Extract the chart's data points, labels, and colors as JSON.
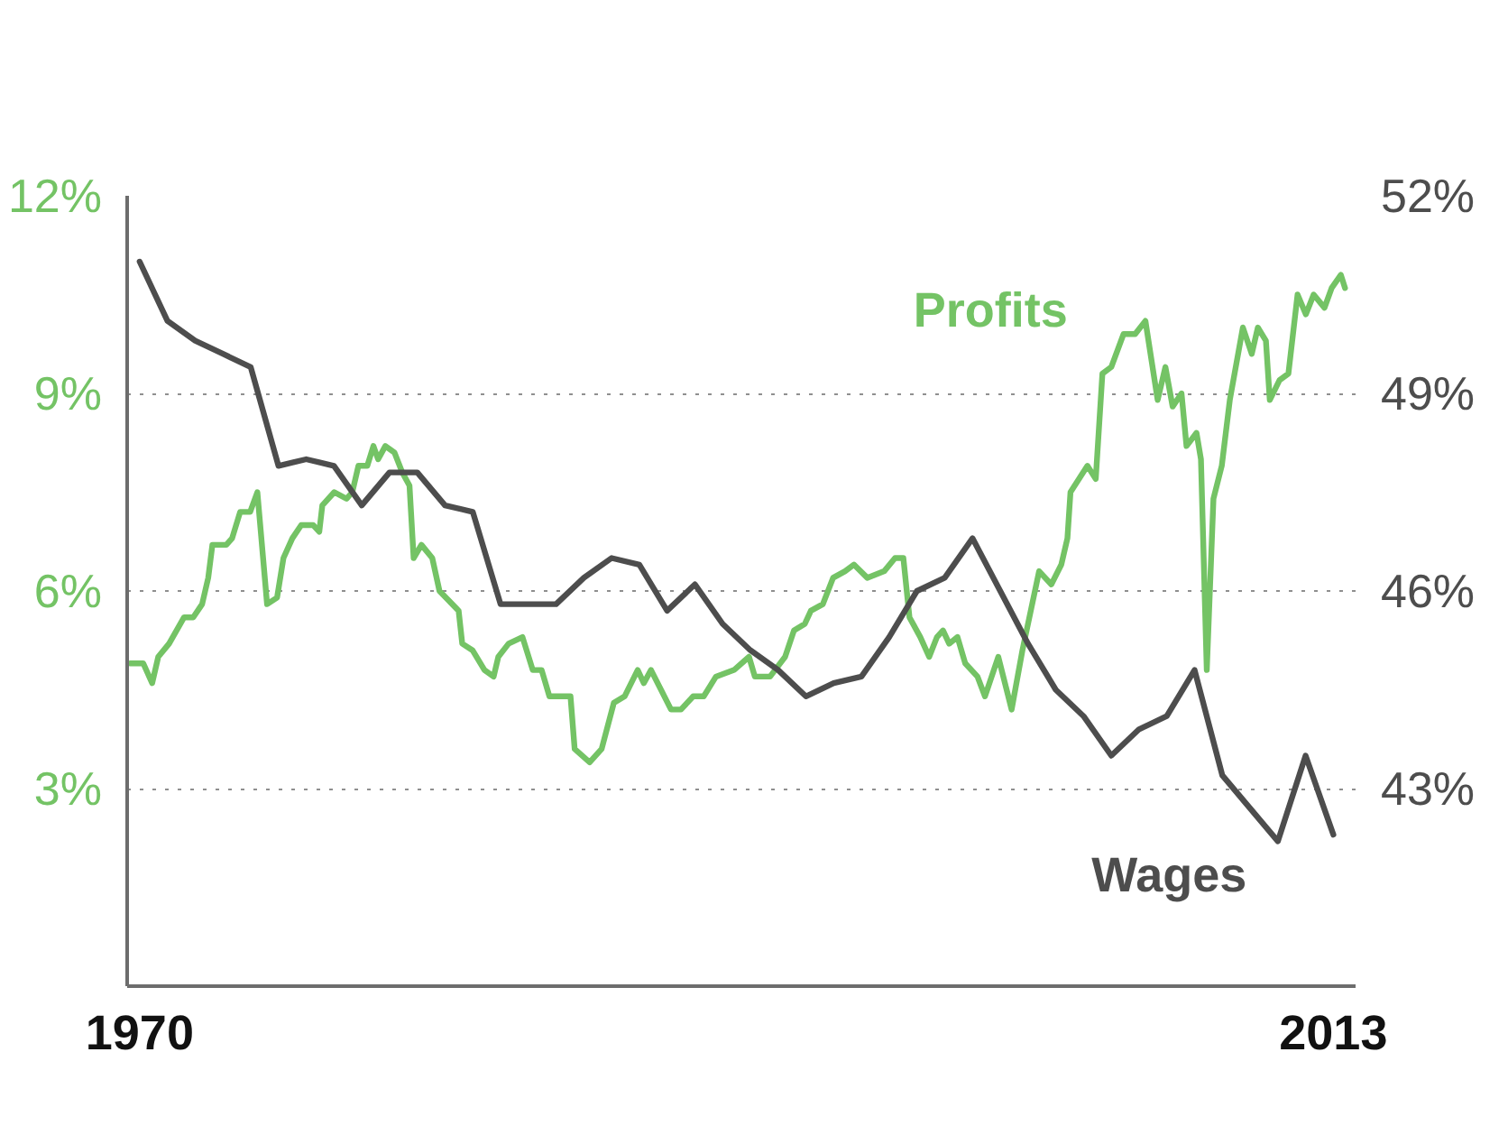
{
  "chart_data": {
    "type": "line",
    "xlim": [
      1969.55,
      2013.8
    ],
    "xticks": [
      1970,
      2013
    ],
    "ylim": [
      0,
      12
    ],
    "yticks": [
      {
        "value": 3,
        "label": "3%"
      },
      {
        "value": 6,
        "label": "6%"
      },
      {
        "value": 9,
        "label": "9%"
      },
      {
        "value": 12,
        "label": "12%"
      }
    ],
    "y2lim": [
      40,
      52
    ],
    "y2ticks": [
      {
        "value": 43,
        "label": "43%"
      },
      {
        "value": 46,
        "label": "46%"
      },
      {
        "value": 49,
        "label": "49%"
      },
      {
        "value": 52,
        "label": "52%"
      }
    ],
    "grid": "y",
    "line_style": "solid",
    "series": [
      {
        "name": "Profits",
        "color": "#74c365",
        "x": [
          1969.66,
          1970.13,
          1970.45,
          1970.67,
          1971.06,
          1971.6,
          1971.93,
          1972.25,
          1972.47,
          1972.62,
          1973.12,
          1973.33,
          1973.62,
          1973.98,
          1974.24,
          1974.59,
          1974.95,
          1975.18,
          1975.5,
          1975.82,
          1976.25,
          1976.47,
          1976.58,
          1977.01,
          1977.45,
          1977.66,
          1977.88,
          1978.2,
          1978.42,
          1978.59,
          1978.85,
          1979.18,
          1979.46,
          1979.72,
          1979.87,
          1980.15,
          1980.54,
          1980.8,
          1981.49,
          1981.62,
          1981.99,
          1982.42,
          1982.75,
          1982.92,
          1983.29,
          1983.79,
          1984.16,
          1984.48,
          1984.76,
          1985.52,
          1985.67,
          1986.21,
          1986.64,
          1987.08,
          1987.47,
          1987.94,
          1988.16,
          1988.42,
          1989.14,
          1989.5,
          1989.94,
          1990.32,
          1990.76,
          1991.41,
          1991.95,
          1992.16,
          1992.71,
          1993.25,
          1993.57,
          1993.96,
          1994.18,
          1994.61,
          1994.98,
          1995.41,
          1995.73,
          1996.21,
          1996.82,
          1997.21,
          1997.51,
          1997.73,
          1998.12,
          1998.44,
          1998.72,
          1998.94,
          1999.16,
          1999.46,
          1999.74,
          2000.18,
          2000.45,
          2000.93,
          2001.41,
          2001.8,
          2002.4,
          2002.84,
          2003.2,
          2003.42,
          2003.53,
          2004.14,
          2004.44,
          2004.68,
          2005.0,
          2005.44,
          2005.86,
          2006.23,
          2006.67,
          2006.95,
          2007.21,
          2007.53,
          2007.71,
          2008.07,
          2008.23,
          2008.44,
          2008.68,
          2008.98,
          2009.27,
          2009.74,
          2010.06,
          2010.28,
          2010.57,
          2010.71,
          2011.06,
          2011.38,
          2011.71,
          2012.01,
          2012.29,
          2012.68,
          2012.94,
          2013.27,
          2013.42
        ],
        "values": [
          4.9,
          4.9,
          4.6,
          5.0,
          5.2,
          5.6,
          5.6,
          5.8,
          6.2,
          6.7,
          6.7,
          6.8,
          7.2,
          7.2,
          7.5,
          5.8,
          5.9,
          6.5,
          6.8,
          7.0,
          7.0,
          6.9,
          7.3,
          7.5,
          7.4,
          7.5,
          7.9,
          7.9,
          8.2,
          8.0,
          8.2,
          8.1,
          7.8,
          7.6,
          6.5,
          6.7,
          6.5,
          6.0,
          5.7,
          5.2,
          5.1,
          4.8,
          4.7,
          5.0,
          5.2,
          5.3,
          4.8,
          4.8,
          4.4,
          4.4,
          3.6,
          3.4,
          3.6,
          4.3,
          4.4,
          4.8,
          4.6,
          4.8,
          4.2,
          4.2,
          4.4,
          4.4,
          4.7,
          4.8,
          5.0,
          4.7,
          4.7,
          5.0,
          5.4,
          5.5,
          5.7,
          5.8,
          6.2,
          6.3,
          6.4,
          6.2,
          6.3,
          6.5,
          6.5,
          5.6,
          5.3,
          5.0,
          5.3,
          5.4,
          5.2,
          5.3,
          4.9,
          4.7,
          4.4,
          5.0,
          4.2,
          5.1,
          6.3,
          6.1,
          6.4,
          6.8,
          7.5,
          7.9,
          7.7,
          9.3,
          9.4,
          9.9,
          9.9,
          10.1,
          8.9,
          9.4,
          8.8,
          9.0,
          8.2,
          8.4,
          8.0,
          4.8,
          7.4,
          7.9,
          8.9,
          10.0,
          9.6,
          10.0,
          9.8,
          8.9,
          9.2,
          9.3,
          10.5,
          10.2,
          10.5,
          10.3,
          10.6,
          10.8,
          10.6
        ]
      },
      {
        "name": "Wages",
        "color": "#4d4d4d",
        "axis": "y2",
        "x": [
          1970,
          1971,
          1972,
          1973,
          1974,
          1975,
          1976,
          1977,
          1978,
          1979,
          1980,
          1981,
          1982,
          1983,
          1984,
          1985,
          1986,
          1987,
          1988,
          1989,
          1990,
          1991,
          1992,
          1993,
          1994,
          1995,
          1996,
          1997,
          1998,
          1999,
          2000,
          2001,
          2002,
          2003,
          2004,
          2005,
          2006,
          2007,
          2008,
          2009,
          2010,
          2011,
          2012,
          2013
        ],
        "values": [
          51.0,
          50.1,
          49.8,
          49.6,
          49.4,
          47.9,
          48.0,
          47.9,
          47.3,
          47.8,
          47.8,
          47.3,
          47.2,
          45.8,
          45.8,
          45.8,
          46.2,
          46.5,
          46.4,
          45.7,
          46.1,
          45.5,
          45.1,
          44.8,
          44.4,
          44.6,
          44.7,
          45.3,
          46.0,
          46.2,
          46.8,
          46.0,
          45.2,
          44.5,
          44.1,
          43.5,
          43.9,
          44.1,
          44.8,
          43.2,
          42.7,
          42.2,
          43.5,
          42.3
        ]
      }
    ]
  }
}
